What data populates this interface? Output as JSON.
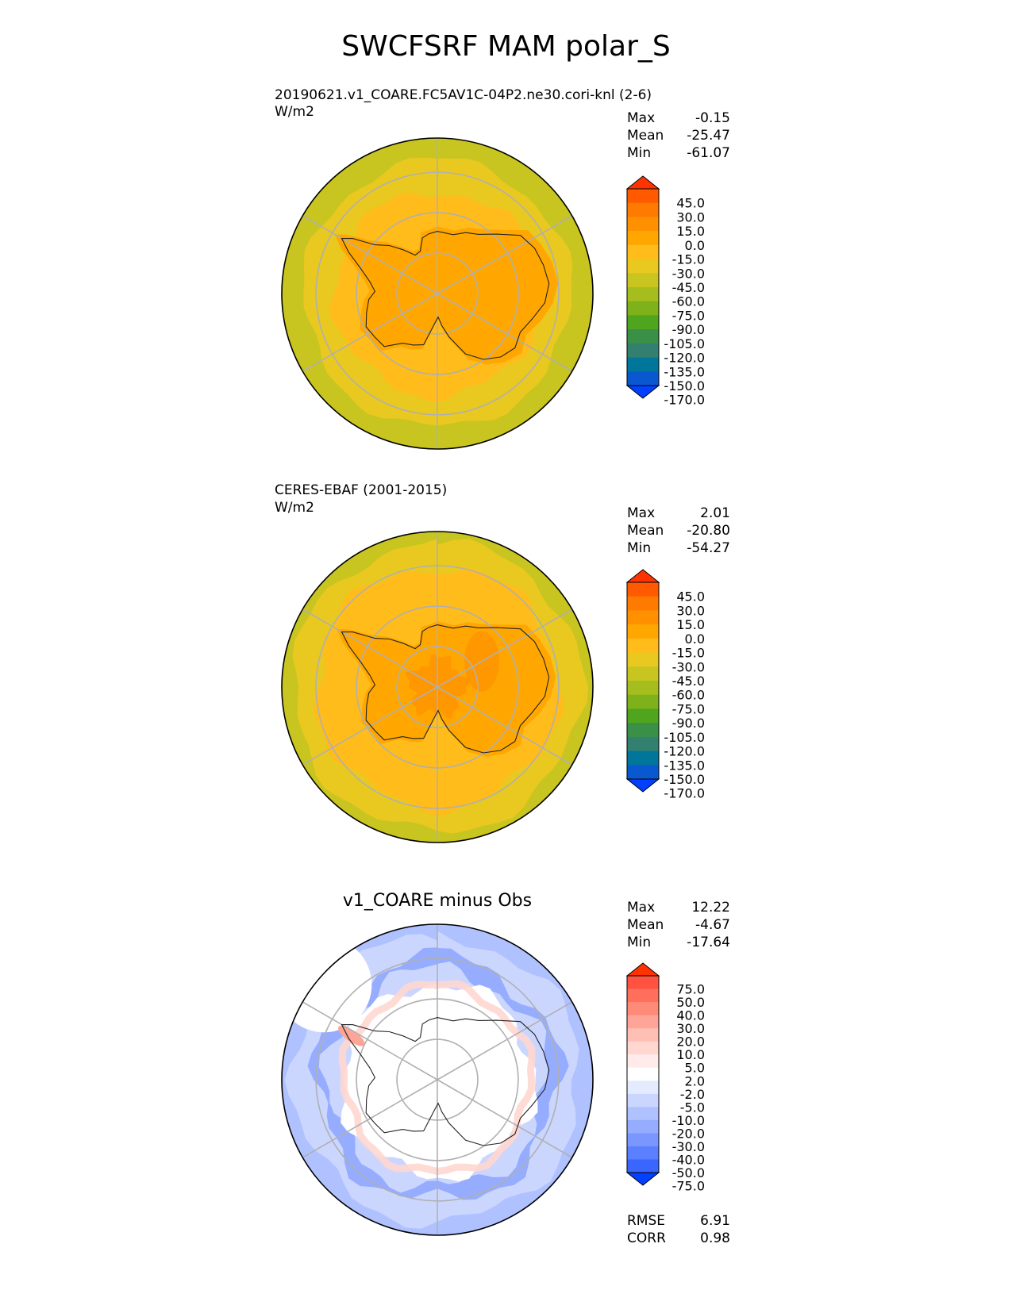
{
  "figure_title": "SWCFSRF MAM polar_S",
  "panels": [
    {
      "title": "20190621.v1_COARE.FC5AV1C-04P2.ne30.cori-knl (2-6)",
      "units": "W/m2",
      "stats": [
        {
          "label": "Max",
          "value": "-0.15"
        },
        {
          "label": "Mean",
          "value": "-25.47"
        },
        {
          "label": "Min",
          "value": "-61.07"
        }
      ]
    },
    {
      "title": "CERES-EBAF (2001-2015)",
      "units": "W/m2",
      "stats": [
        {
          "label": "Max",
          "value": "2.01"
        },
        {
          "label": "Mean",
          "value": "-20.80"
        },
        {
          "label": "Min",
          "value": "-54.27"
        }
      ]
    },
    {
      "title": "v1_COARE minus Obs",
      "stats": [
        {
          "label": "Max",
          "value": "12.22"
        },
        {
          "label": "Mean",
          "value": "-4.67"
        },
        {
          "label": "Min",
          "value": "-17.64"
        }
      ],
      "metrics": [
        {
          "label": "RMSE",
          "value": "6.91"
        },
        {
          "label": "CORR",
          "value": "0.98"
        }
      ]
    }
  ],
  "colorbars": {
    "field": {
      "labels": [
        "45.0",
        "30.0",
        "15.0",
        "0.0",
        "-15.0",
        "-30.0",
        "-45.0",
        "-60.0",
        "-75.0",
        "-90.0",
        "-105.0",
        "-120.0",
        "-135.0",
        "-150.0",
        "-170.0"
      ],
      "colors": [
        "#ff3300",
        "#ff5a00",
        "#ff7a00",
        "#ff9100",
        "#ffa700",
        "#ffbc1a",
        "#e9c820",
        "#c8c520",
        "#a6bd1e",
        "#7fb21a",
        "#4fa61e",
        "#3a9046",
        "#338070",
        "#00779a",
        "#0a58d0",
        "#0040ff"
      ]
    },
    "diff": {
      "labels": [
        "75.0",
        "50.0",
        "40.0",
        "30.0",
        "20.0",
        "10.0",
        "5.0",
        "2.0",
        "-2.0",
        "-5.0",
        "-10.0",
        "-20.0",
        "-30.0",
        "-40.0",
        "-50.0",
        "-75.0"
      ],
      "colors": [
        "#ff3300",
        "#ff5240",
        "#ff6f5c",
        "#ff8a78",
        "#ffa597",
        "#ffbfb4",
        "#ffd7d0",
        "#ffecea",
        "#ffffff",
        "#e5ebff",
        "#cbd6ff",
        "#b0c1ff",
        "#95acff",
        "#7a97ff",
        "#5b80ff",
        "#3a66ff",
        "#0040ff"
      ]
    }
  },
  "chart_data": [
    {
      "type": "heatmap",
      "title": "20190621.v1_COARE.FC5AV1C-04P2.ne30.cori-knl (2-6)",
      "projection": "south polar stereographic",
      "units": "W/m2",
      "stats": {
        "max": -0.15,
        "mean": -25.47,
        "min": -61.07
      },
      "contour_levels": [
        -170,
        -150,
        -135,
        -120,
        -105,
        -90,
        -75,
        -60,
        -45,
        -30,
        -15,
        0,
        15,
        30,
        45
      ]
    },
    {
      "type": "heatmap",
      "title": "CERES-EBAF (2001-2015)",
      "projection": "south polar stereographic",
      "units": "W/m2",
      "stats": {
        "max": 2.01,
        "mean": -20.8,
        "min": -54.27
      },
      "contour_levels": [
        -170,
        -150,
        -135,
        -120,
        -105,
        -90,
        -75,
        -60,
        -45,
        -30,
        -15,
        0,
        15,
        30,
        45
      ]
    },
    {
      "type": "heatmap",
      "title": "v1_COARE minus Obs",
      "projection": "south polar stereographic",
      "stats": {
        "max": 12.22,
        "mean": -4.67,
        "min": -17.64,
        "rmse": 6.91,
        "corr": 0.98
      },
      "contour_levels": [
        -75,
        -50,
        -40,
        -30,
        -20,
        -10,
        -5,
        -2,
        2,
        5,
        10,
        20,
        30,
        40,
        50,
        75
      ]
    }
  ]
}
